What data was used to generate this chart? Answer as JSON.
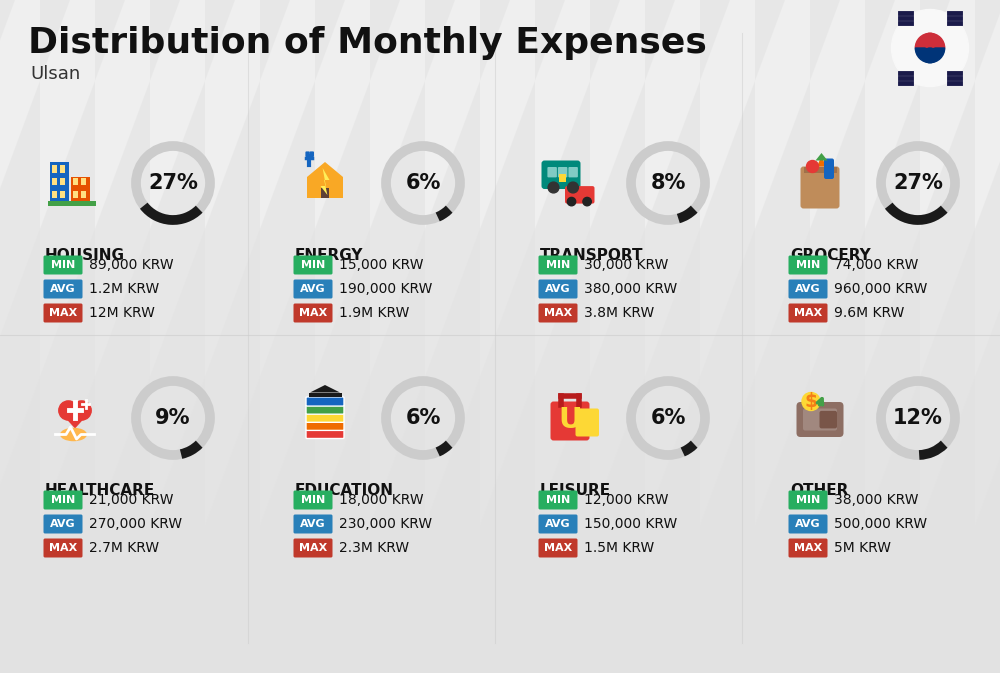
{
  "title": "Distribution of Monthly Expenses",
  "subtitle": "Ulsan",
  "background_color": "#efefef",
  "stripe_color": "#e2e2e2",
  "categories": [
    {
      "name": "HOUSING",
      "percent": 27,
      "min": "89,000 KRW",
      "avg": "1.2M KRW",
      "max": "12M KRW",
      "row": 0,
      "col": 0
    },
    {
      "name": "ENERGY",
      "percent": 6,
      "min": "15,000 KRW",
      "avg": "190,000 KRW",
      "max": "1.9M KRW",
      "row": 0,
      "col": 1
    },
    {
      "name": "TRANSPORT",
      "percent": 8,
      "min": "30,000 KRW",
      "avg": "380,000 KRW",
      "max": "3.8M KRW",
      "row": 0,
      "col": 2
    },
    {
      "name": "GROCERY",
      "percent": 27,
      "min": "74,000 KRW",
      "avg": "960,000 KRW",
      "max": "9.6M KRW",
      "row": 0,
      "col": 3
    },
    {
      "name": "HEALTHCARE",
      "percent": 9,
      "min": "21,000 KRW",
      "avg": "270,000 KRW",
      "max": "2.7M KRW",
      "row": 1,
      "col": 0
    },
    {
      "name": "EDUCATION",
      "percent": 6,
      "min": "18,000 KRW",
      "avg": "230,000 KRW",
      "max": "2.3M KRW",
      "row": 1,
      "col": 1
    },
    {
      "name": "LEISURE",
      "percent": 6,
      "min": "12,000 KRW",
      "avg": "150,000 KRW",
      "max": "1.5M KRW",
      "row": 1,
      "col": 2
    },
    {
      "name": "OTHER",
      "percent": 12,
      "min": "38,000 KRW",
      "avg": "500,000 KRW",
      "max": "5M KRW",
      "row": 1,
      "col": 3
    }
  ],
  "min_color": "#27ae60",
  "avg_color": "#2980b9",
  "max_color": "#c0392b",
  "ring_filled": "#1a1a1a",
  "ring_empty": "#cccccc",
  "title_fontsize": 26,
  "subtitle_fontsize": 13,
  "cat_fontsize": 11,
  "val_fontsize": 10,
  "pct_fontsize": 15
}
